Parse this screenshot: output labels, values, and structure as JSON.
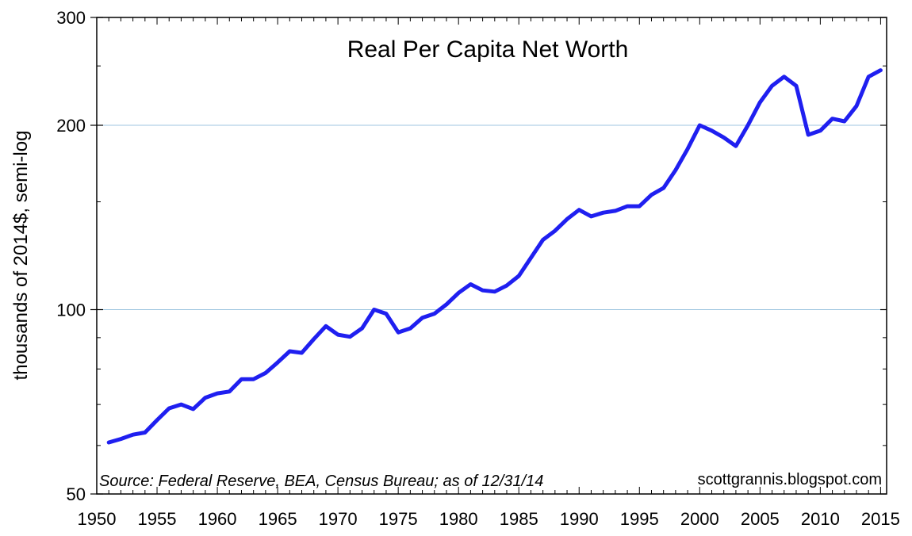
{
  "chart_data": {
    "type": "line",
    "title": "Real Per Capita Net Worth",
    "xlabel": "",
    "ylabel": "thousands of 2014$, semi-log",
    "yscale": "log",
    "xlim": [
      1950,
      2015.5
    ],
    "ylim": [
      50,
      300
    ],
    "x_ticks": [
      1950,
      1955,
      1960,
      1965,
      1970,
      1975,
      1980,
      1985,
      1990,
      1995,
      2000,
      2005,
      2010,
      2015
    ],
    "y_ticks": [
      50,
      100,
      200,
      300
    ],
    "gridlines_at": [
      100,
      200
    ],
    "source_note": "Source: Federal Reserve, BEA, Census Bureau; as of 12/31/14",
    "watermark": "scottgrannis.blogspot.com",
    "series": [
      {
        "color": "#1f1ff0",
        "x": [
          1951,
          1952,
          1953,
          1954,
          1955,
          1956,
          1957,
          1958,
          1959,
          1960,
          1961,
          1962,
          1963,
          1964,
          1965,
          1966,
          1967,
          1968,
          1969,
          1970,
          1971,
          1972,
          1973,
          1974,
          1975,
          1976,
          1977,
          1978,
          1979,
          1980,
          1981,
          1982,
          1983,
          1984,
          1985,
          1986,
          1987,
          1988,
          1989,
          1990,
          1991,
          1992,
          1993,
          1994,
          1995,
          1996,
          1997,
          1998,
          1999,
          2000,
          2001,
          2002,
          2003,
          2004,
          2005,
          2006,
          2007,
          2008,
          2009,
          2010,
          2011,
          2012,
          2013,
          2014,
          2015
        ],
        "values": [
          60.7,
          61.5,
          62.5,
          63.0,
          66.0,
          69.0,
          70.0,
          68.8,
          71.8,
          73.0,
          73.5,
          77.0,
          77.0,
          78.8,
          82.0,
          85.5,
          85.0,
          89.5,
          94.0,
          91.0,
          90.3,
          93.2,
          100.0,
          98.5,
          91.8,
          93.2,
          97.0,
          98.5,
          102.0,
          106.5,
          110.0,
          107.5,
          107.0,
          109.5,
          113.5,
          121.5,
          130.0,
          134.5,
          140.5,
          145.5,
          142.0,
          144.0,
          145.0,
          147.5,
          147.5,
          154.0,
          158.0,
          169.0,
          183.0,
          200.0,
          196.0,
          191.0,
          185.0,
          200.0,
          218.0,
          232.0,
          240.0,
          232.0,
          193.0,
          196.0,
          205.0,
          203.0,
          215.0,
          240.0,
          246.0
        ]
      }
    ]
  }
}
